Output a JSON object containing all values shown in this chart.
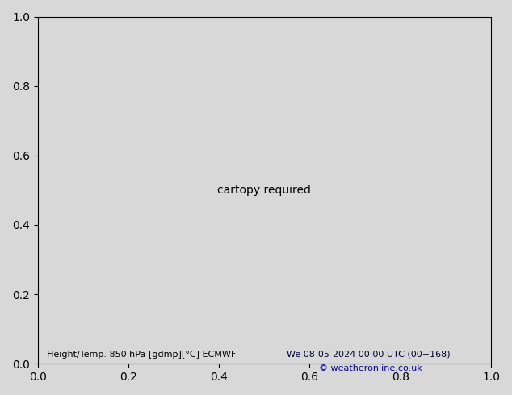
{
  "title_left": "Height/Temp. 850 hPa [gdmp][°C] ECMWF",
  "title_right": "We 08-05-2024 00:00 UTC (00+168)",
  "copyright": "© weatheronline.co.uk",
  "bg_color": "#d8d8d8",
  "land_green": "#c8eaaa",
  "land_gray": "#aaaaaa",
  "ocean_color": "#d8d8d8",
  "fig_width": 6.34,
  "fig_height": 4.9,
  "dpi": 100,
  "extent": [
    -170,
    -50,
    15,
    85
  ],
  "black_lw": 2.2,
  "temp_lw": 1.6
}
